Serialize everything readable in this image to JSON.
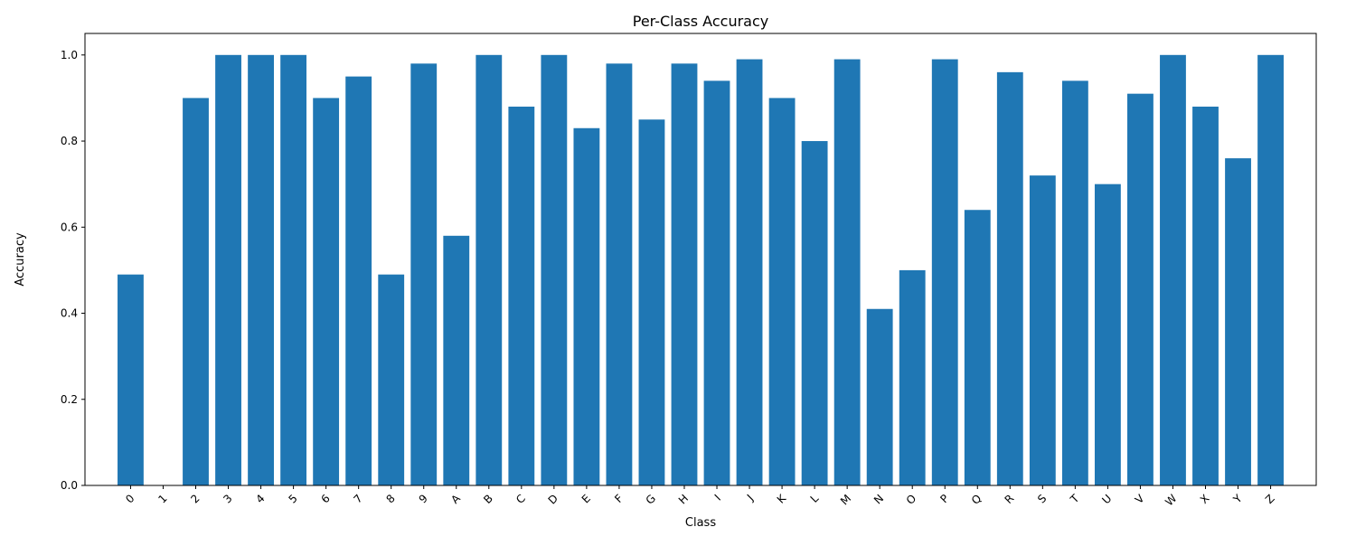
{
  "chart_data": {
    "type": "bar",
    "title": "Per-Class Accuracy",
    "xlabel": "Class",
    "ylabel": "Accuracy",
    "ylim": [
      0,
      1.05
    ],
    "yticks": [
      "0.0",
      "0.2",
      "0.4",
      "0.6",
      "0.8",
      "1.0"
    ],
    "categories": [
      "0",
      "1",
      "2",
      "3",
      "4",
      "5",
      "6",
      "7",
      "8",
      "9",
      "A",
      "B",
      "C",
      "D",
      "E",
      "F",
      "G",
      "H",
      "I",
      "J",
      "K",
      "L",
      "M",
      "N",
      "O",
      "P",
      "Q",
      "R",
      "S",
      "T",
      "U",
      "V",
      "W",
      "X",
      "Y",
      "Z"
    ],
    "values": [
      0.49,
      0.0,
      0.9,
      1.0,
      1.0,
      1.0,
      0.9,
      0.95,
      0.49,
      0.98,
      0.58,
      1.0,
      0.88,
      1.0,
      0.83,
      0.98,
      0.85,
      0.98,
      0.94,
      0.99,
      0.9,
      0.8,
      0.99,
      0.41,
      0.5,
      0.99,
      0.64,
      0.96,
      0.72,
      0.94,
      0.7,
      0.91,
      1.0,
      0.88,
      0.76,
      1.0
    ],
    "bar_color": "#1f77b4",
    "grid": false,
    "legend": "none"
  }
}
